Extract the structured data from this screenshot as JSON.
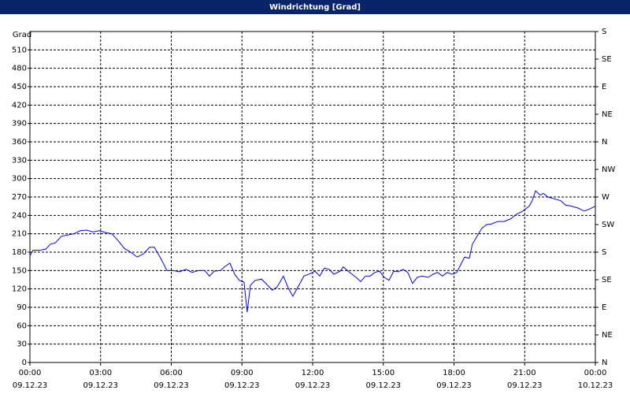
{
  "chart_data": {
    "type": "line",
    "title": "Windrichtung [Grad]",
    "y_label": "Grad",
    "color": "#0000ff",
    "x": [
      0,
      0.13,
      0.4,
      0.67,
      0.87,
      1.07,
      1.34,
      1.6,
      1.87,
      2.14,
      2.41,
      2.67,
      2.94,
      3.21,
      3.48,
      3.74,
      4.01,
      4.28,
      4.55,
      4.81,
      5.08,
      5.28,
      5.55,
      5.82,
      6.08,
      6.35,
      6.62,
      6.89,
      7.15,
      7.42,
      7.62,
      7.82,
      8.09,
      8.29,
      8.49,
      8.69,
      8.89,
      9.09,
      9.22,
      9.36,
      9.56,
      9.83,
      10.09,
      10.29,
      10.49,
      10.76,
      10.96,
      11.16,
      11.36,
      11.63,
      11.9,
      12.1,
      12.3,
      12.5,
      12.7,
      12.9,
      13.17,
      13.3,
      13.57,
      13.84,
      14.04,
      14.24,
      14.44,
      14.64,
      14.84,
      15.04,
      15.24,
      15.44,
      15.64,
      15.84,
      16.04,
      16.24,
      16.44,
      16.64,
      16.91,
      17.11,
      17.31,
      17.51,
      17.71,
      17.91,
      18.12,
      18.25,
      18.45,
      18.65,
      18.78,
      18.98,
      19.18,
      19.39,
      19.59,
      19.85,
      20.12,
      20.39,
      20.66,
      20.92,
      21.19,
      21.32,
      21.46,
      21.66,
      21.79,
      21.99,
      22.26,
      22.53,
      22.73,
      22.99,
      23.26,
      23.53,
      23.73,
      24.0
    ],
    "values": [
      174,
      183,
      183,
      185,
      193,
      195,
      206,
      208,
      210,
      215,
      216,
      213,
      215,
      212,
      210,
      199,
      186,
      180,
      172,
      177,
      188,
      188,
      170,
      150,
      150,
      148,
      152,
      147,
      150,
      150,
      141,
      149,
      150,
      157,
      162,
      144,
      134,
      131,
      82,
      126,
      134,
      136,
      126,
      118,
      123,
      141,
      122,
      108,
      122,
      141,
      145,
      149,
      141,
      154,
      152,
      144,
      149,
      156,
      147,
      139,
      132,
      141,
      141,
      147,
      149,
      139,
      134,
      149,
      148,
      152,
      147,
      129,
      139,
      141,
      139,
      144,
      147,
      141,
      147,
      144,
      147,
      157,
      172,
      170,
      193,
      206,
      219,
      225,
      226,
      230,
      230,
      234,
      242,
      247,
      255,
      264,
      280,
      273,
      276,
      270,
      267,
      264,
      257,
      255,
      252,
      247,
      250,
      255
    ],
    "xlim": [
      0,
      24
    ],
    "xticks": [
      {
        "value": 0,
        "label": "00:00"
      },
      {
        "value": 3,
        "label": "03:00"
      },
      {
        "value": 6,
        "label": "06:00"
      },
      {
        "value": 9,
        "label": "09:00"
      },
      {
        "value": 12,
        "label": "12:00"
      },
      {
        "value": 15,
        "label": "15:00"
      },
      {
        "value": 18,
        "label": "18:00"
      },
      {
        "value": 21,
        "label": "21:00"
      },
      {
        "value": 24,
        "label": "00:00"
      }
    ],
    "xtick_dates": [
      "09.12.23",
      "09.12.23",
      "09.12.23",
      "09.12.23",
      "09.12.23",
      "09.12.23",
      "09.12.23",
      "09.12.23",
      "10.12.23"
    ],
    "ylim": [
      0,
      540
    ],
    "yticks": [
      0,
      30,
      60,
      90,
      120,
      150,
      180,
      210,
      240,
      270,
      300,
      330,
      360,
      390,
      420,
      450,
      480,
      510
    ],
    "y2lim": [
      0,
      540
    ],
    "y2ticks": [
      {
        "value": 0,
        "label": "N"
      },
      {
        "value": 45,
        "label": "NE"
      },
      {
        "value": 90,
        "label": "E"
      },
      {
        "value": 135,
        "label": "SE"
      },
      {
        "value": 180,
        "label": "S"
      },
      {
        "value": 225,
        "label": "SW"
      },
      {
        "value": 270,
        "label": "W"
      },
      {
        "value": 315,
        "label": "NW"
      },
      {
        "value": 360,
        "label": "N"
      },
      {
        "value": 405,
        "label": "NE"
      },
      {
        "value": 450,
        "label": "E"
      },
      {
        "value": 495,
        "label": "SE"
      },
      {
        "value": 540,
        "label": "S"
      }
    ],
    "grid": true
  }
}
